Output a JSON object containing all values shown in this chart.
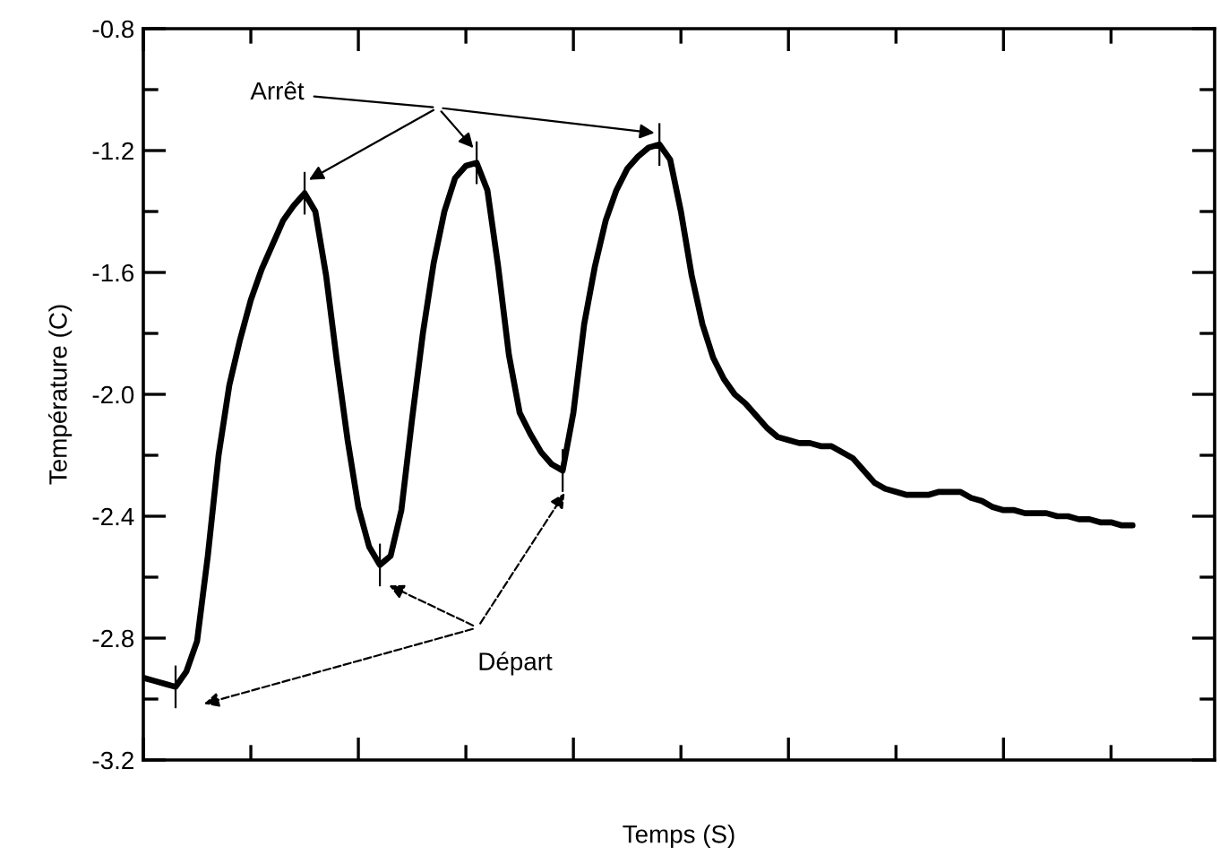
{
  "chart_data": {
    "type": "line",
    "xlabel": "Temps (S)",
    "ylabel": "Température (C)",
    "categories": [
      null,
      null,
      null,
      null,
      null,
      null,
      null,
      null,
      null,
      null,
      null,
      null,
      null,
      null,
      null,
      null,
      null,
      null,
      null,
      null,
      null,
      null,
      null,
      null,
      null,
      null,
      null,
      null,
      null,
      null,
      null,
      null,
      null,
      null,
      null,
      null,
      null,
      null,
      null,
      null,
      null,
      null,
      null,
      null,
      null,
      null,
      null,
      null,
      null,
      null,
      null,
      null,
      null,
      null,
      null,
      null,
      null,
      null,
      null,
      null,
      null,
      null,
      null,
      null,
      null,
      null,
      null,
      null,
      null,
      null,
      null,
      null,
      null,
      null,
      null,
      null,
      null,
      null,
      null,
      null,
      null,
      null,
      null,
      null,
      null,
      null,
      null,
      null,
      null,
      null,
      null,
      null,
      null
    ],
    "series": [
      {
        "color": "#000000",
        "values": [
          -2.93,
          -2.94,
          -2.95,
          -2.96,
          -2.91,
          -2.81,
          -2.53,
          -2.2,
          -1.97,
          -1.82,
          -1.69,
          -1.59,
          -1.51,
          -1.43,
          -1.38,
          -1.34,
          -1.4,
          -1.61,
          -1.89,
          -2.15,
          -2.37,
          -2.5,
          -2.56,
          -2.53,
          -2.38,
          -2.08,
          -1.8,
          -1.57,
          -1.4,
          -1.29,
          -1.25,
          -1.24,
          -1.33,
          -1.58,
          -1.87,
          -2.06,
          -2.13,
          -2.19,
          -2.23,
          -2.25,
          -2.06,
          -1.77,
          -1.58,
          -1.43,
          -1.33,
          -1.26,
          -1.22,
          -1.19,
          -1.18,
          -1.23,
          -1.4,
          -1.61,
          -1.77,
          -1.88,
          -1.95,
          -2.0,
          -2.03,
          -2.07,
          -2.11,
          -2.14,
          -2.15,
          -2.16,
          -2.16,
          -2.17,
          -2.17,
          -2.19,
          -2.21,
          -2.25,
          -2.29,
          -2.31,
          -2.32,
          -2.33,
          -2.33,
          -2.33,
          -2.32,
          -2.32,
          -2.32,
          -2.34,
          -2.35,
          -2.37,
          -2.38,
          -2.38,
          -2.39,
          -2.39,
          -2.39,
          -2.4,
          -2.4,
          -2.41,
          -2.41,
          -2.42,
          -2.42,
          -2.43,
          -2.43
        ]
      }
    ],
    "ylim": [
      -3.2,
      -0.8
    ],
    "yticks": [
      -3.2,
      -2.8,
      -2.4,
      {
        "value": -2.0,
        "label": "-2.0"
      },
      -1.6,
      -1.2,
      -0.8
    ],
    "tick_labels": "y",
    "annotations": [
      "Arrêt",
      "Départ"
    ]
  }
}
